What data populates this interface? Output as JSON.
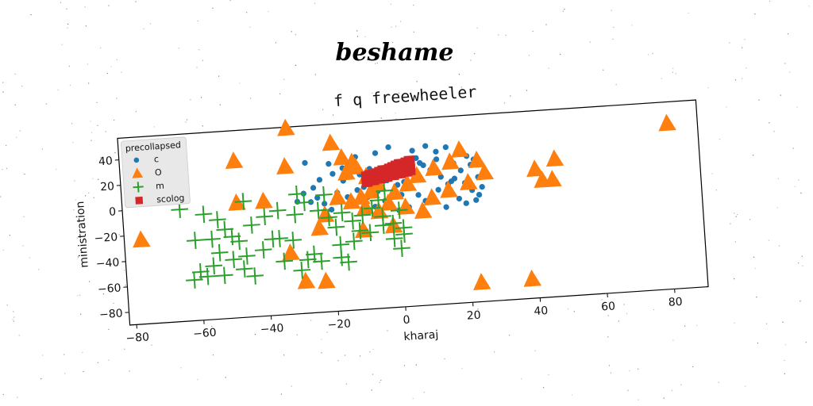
{
  "suptitle": "beshame",
  "chart_data": {
    "type": "scatter",
    "title": "f q freewheeler",
    "xlabel": "kharaj",
    "ylabel": "ministration",
    "xlim": [
      -82,
      90
    ],
    "ylim": [
      -90,
      57
    ],
    "xticks": [
      -80,
      -60,
      -40,
      -20,
      0,
      20,
      40,
      60,
      80
    ],
    "yticks": [
      -80,
      -60,
      -40,
      -20,
      0,
      20,
      40
    ],
    "legend": {
      "title": "precollapsed",
      "placement": "top-left"
    },
    "series": [
      {
        "name": "c",
        "marker": "circle",
        "color": "#1f77b4",
        "points": [
          [
            -27,
            28
          ],
          [
            -20,
            26
          ],
          [
            -12,
            30
          ],
          [
            -6,
            32
          ],
          [
            -2,
            36
          ],
          [
            5,
            32
          ],
          [
            9,
            35
          ],
          [
            12,
            30
          ],
          [
            15,
            33
          ],
          [
            18,
            28
          ],
          [
            21,
            25
          ],
          [
            23,
            22
          ],
          [
            22,
            18
          ],
          [
            19,
            14
          ],
          [
            17,
            8
          ],
          [
            15,
            4
          ],
          [
            12,
            0
          ],
          [
            10,
            -4
          ],
          [
            8,
            -8
          ],
          [
            6,
            -3
          ],
          [
            4,
            3
          ],
          [
            2,
            8
          ],
          [
            0,
            6
          ],
          [
            -3,
            10
          ],
          [
            -6,
            2
          ],
          [
            -9,
            -2
          ],
          [
            -12,
            4
          ],
          [
            -15,
            -1
          ],
          [
            -18,
            3
          ],
          [
            -22,
            -5
          ],
          [
            -24,
            0
          ],
          [
            -26,
            -3
          ],
          [
            -20,
            -10
          ],
          [
            -14,
            -8
          ],
          [
            -10,
            6
          ],
          [
            -8,
            12
          ],
          [
            -4,
            -6
          ],
          [
            1,
            -2
          ],
          [
            3,
            -12
          ],
          [
            5,
            14
          ],
          [
            8,
            20
          ],
          [
            11,
            16
          ],
          [
            13,
            10
          ],
          [
            16,
            6
          ],
          [
            20,
            4
          ],
          [
            22,
            -2
          ],
          [
            24,
            -6
          ],
          [
            25,
            0
          ],
          [
            23,
            -10
          ],
          [
            18,
            -8
          ],
          [
            14,
            -14
          ],
          [
            10,
            16
          ],
          [
            7,
            22
          ],
          [
            2,
            24
          ],
          [
            -2,
            20
          ],
          [
            -5,
            18
          ],
          [
            -8,
            20
          ],
          [
            -11,
            16
          ],
          [
            -16,
            12
          ],
          [
            -19,
            18
          ],
          [
            -23,
            14
          ],
          [
            -25,
            8
          ],
          [
            -28,
            4
          ],
          [
            -30,
            -2
          ],
          [
            -16,
            22
          ],
          [
            -13,
            20
          ],
          [
            0,
            -14
          ],
          [
            6,
            26
          ],
          [
            17,
            20
          ],
          [
            20,
            -12
          ],
          [
            -7,
            -10
          ],
          [
            3,
            18
          ],
          [
            12,
            24
          ],
          [
            24,
            8
          ]
        ]
      },
      {
        "name": "O",
        "marker": "triangle",
        "color": "#ff7f0e",
        "points": [
          [
            -66,
            44
          ],
          [
            -32,
            56
          ],
          [
            -19,
            42
          ],
          [
            -48,
            33
          ],
          [
            -33,
            26
          ],
          [
            -16,
            30
          ],
          [
            -13,
            26
          ],
          [
            -12,
            22
          ],
          [
            -15,
            18
          ],
          [
            -9,
            14
          ],
          [
            -6,
            8
          ],
          [
            -8,
            2
          ],
          [
            -11,
            -2
          ],
          [
            -14,
            -5
          ],
          [
            -10,
            -10
          ],
          [
            -6,
            -14
          ],
          [
            -3,
            -8
          ],
          [
            -1,
            0
          ],
          [
            3,
            6
          ],
          [
            6,
            12
          ],
          [
            11,
            17
          ],
          [
            16,
            21
          ],
          [
            19,
            30
          ],
          [
            24,
            21
          ],
          [
            26,
            11
          ],
          [
            21,
            4
          ],
          [
            15,
            -1
          ],
          [
            10,
            -6
          ],
          [
            7,
            -16
          ],
          [
            2,
            -12
          ],
          [
            -2,
            -26
          ],
          [
            -11,
            -28
          ],
          [
            -22,
            -14
          ],
          [
            -24,
            -24
          ],
          [
            -33,
            -42
          ],
          [
            -29,
            -65
          ],
          [
            -23,
            -66
          ],
          [
            -18,
            -1
          ],
          [
            -40,
            0
          ],
          [
            -48,
            0
          ],
          [
            -77,
            -24
          ],
          [
            23,
            -75
          ],
          [
            38,
            -75
          ],
          [
            41,
            11
          ],
          [
            43,
            2
          ],
          [
            46,
            2
          ],
          [
            47,
            18
          ],
          [
            81,
            40
          ]
        ]
      },
      {
        "name": "m",
        "marker": "plus",
        "color": "#2ca02c",
        "points": [
          [
            -65,
            -2
          ],
          [
            -58,
            -7
          ],
          [
            -54,
            -12
          ],
          [
            -52,
            -20
          ],
          [
            -50,
            -26
          ],
          [
            -56,
            -27
          ],
          [
            -61,
            -27
          ],
          [
            -48,
            -30
          ],
          [
            -44,
            -18
          ],
          [
            -40,
            -12
          ],
          [
            -36,
            -8
          ],
          [
            -31,
            -12
          ],
          [
            -28,
            -3
          ],
          [
            -24,
            -10
          ],
          [
            -21,
            -16
          ],
          [
            -19,
            -24
          ],
          [
            -17,
            -13
          ],
          [
            -14,
            -20
          ],
          [
            -11,
            -16
          ],
          [
            -8,
            -11
          ],
          [
            -5,
            -18
          ],
          [
            -2,
            -24
          ],
          [
            0,
            -14
          ],
          [
            1,
            -33
          ],
          [
            0,
            -44
          ],
          [
            -6,
            -5
          ],
          [
            -4,
            2
          ],
          [
            -22,
            2
          ],
          [
            -30,
            4
          ],
          [
            -46,
            1
          ],
          [
            -38,
            -30
          ],
          [
            -41,
            -38
          ],
          [
            -46,
            -42
          ],
          [
            -50,
            -44
          ],
          [
            -54,
            -38
          ],
          [
            -56,
            -48
          ],
          [
            -60,
            -52
          ],
          [
            -58,
            -56
          ],
          [
            -53,
            -56
          ],
          [
            -47,
            -52
          ],
          [
            -44,
            -58
          ],
          [
            -32,
            -32
          ],
          [
            -26,
            -44
          ],
          [
            -24,
            -50
          ],
          [
            -28,
            -48
          ],
          [
            -35,
            -48
          ],
          [
            -18,
            -48
          ],
          [
            -16,
            -52
          ],
          [
            -14,
            -36
          ],
          [
            -12,
            -28
          ],
          [
            -9,
            -30
          ],
          [
            -5,
            -25
          ],
          [
            -2,
            -36
          ],
          [
            1,
            -28
          ],
          [
            -30,
            -56
          ],
          [
            -18,
            -38
          ],
          [
            -36,
            -30
          ],
          [
            -62,
            -58
          ]
        ]
      },
      {
        "name": "scolog",
        "marker": "square",
        "color": "#d62728",
        "points": [
          [
            -9,
            14
          ],
          [
            -8,
            15
          ],
          [
            -7,
            15
          ],
          [
            -6,
            16
          ],
          [
            -5,
            17
          ],
          [
            -4,
            18
          ],
          [
            -3,
            18
          ],
          [
            -2,
            19
          ],
          [
            -1,
            20
          ],
          [
            0,
            21
          ],
          [
            1,
            22
          ],
          [
            2,
            22
          ],
          [
            3,
            23
          ],
          [
            4,
            24
          ],
          [
            -9,
            10
          ],
          [
            -7,
            11
          ],
          [
            -5,
            12
          ],
          [
            -3,
            13
          ],
          [
            -1,
            14
          ],
          [
            1,
            15
          ],
          [
            3,
            16
          ],
          [
            4,
            17
          ],
          [
            -8,
            12
          ],
          [
            -6,
            13
          ],
          [
            -4,
            15
          ],
          [
            -2,
            16
          ],
          [
            0,
            18
          ],
          [
            2,
            19
          ],
          [
            4,
            20
          ],
          [
            3,
            21
          ]
        ]
      }
    ]
  }
}
